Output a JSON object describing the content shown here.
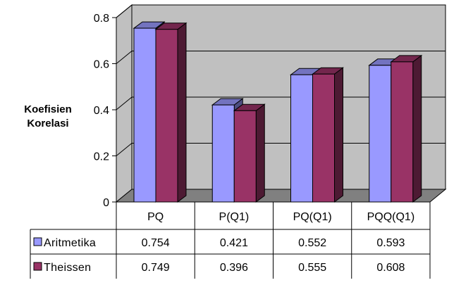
{
  "chart_data": {
    "type": "bar",
    "ylabel_lines": [
      "Koefisien",
      "Korelasi"
    ],
    "ylim": [
      0,
      0.8
    ],
    "yticks": [
      "0",
      "0.2",
      "0.4",
      "0.6",
      "0.8"
    ],
    "categories": [
      "PQ",
      "P(Q1)",
      "PQ(Q1)",
      "PQQ(Q1)"
    ],
    "series": [
      {
        "name": "Aritmetika",
        "values": [
          0.754,
          0.421,
          0.552,
          0.593
        ],
        "value_labels": [
          "0.754",
          "0.421",
          "0.552",
          "0.593"
        ],
        "color": "#9999ff"
      },
      {
        "name": "Theissen",
        "values": [
          0.749,
          0.396,
          0.555,
          0.608
        ],
        "value_labels": [
          "0.749",
          "0.396",
          "0.555",
          "0.608"
        ],
        "color": "#993366"
      }
    ],
    "grid": true,
    "style": "3d-clustered-column",
    "background": "#c0c0c0",
    "floor": "#808080",
    "legend": "data-table-left"
  }
}
